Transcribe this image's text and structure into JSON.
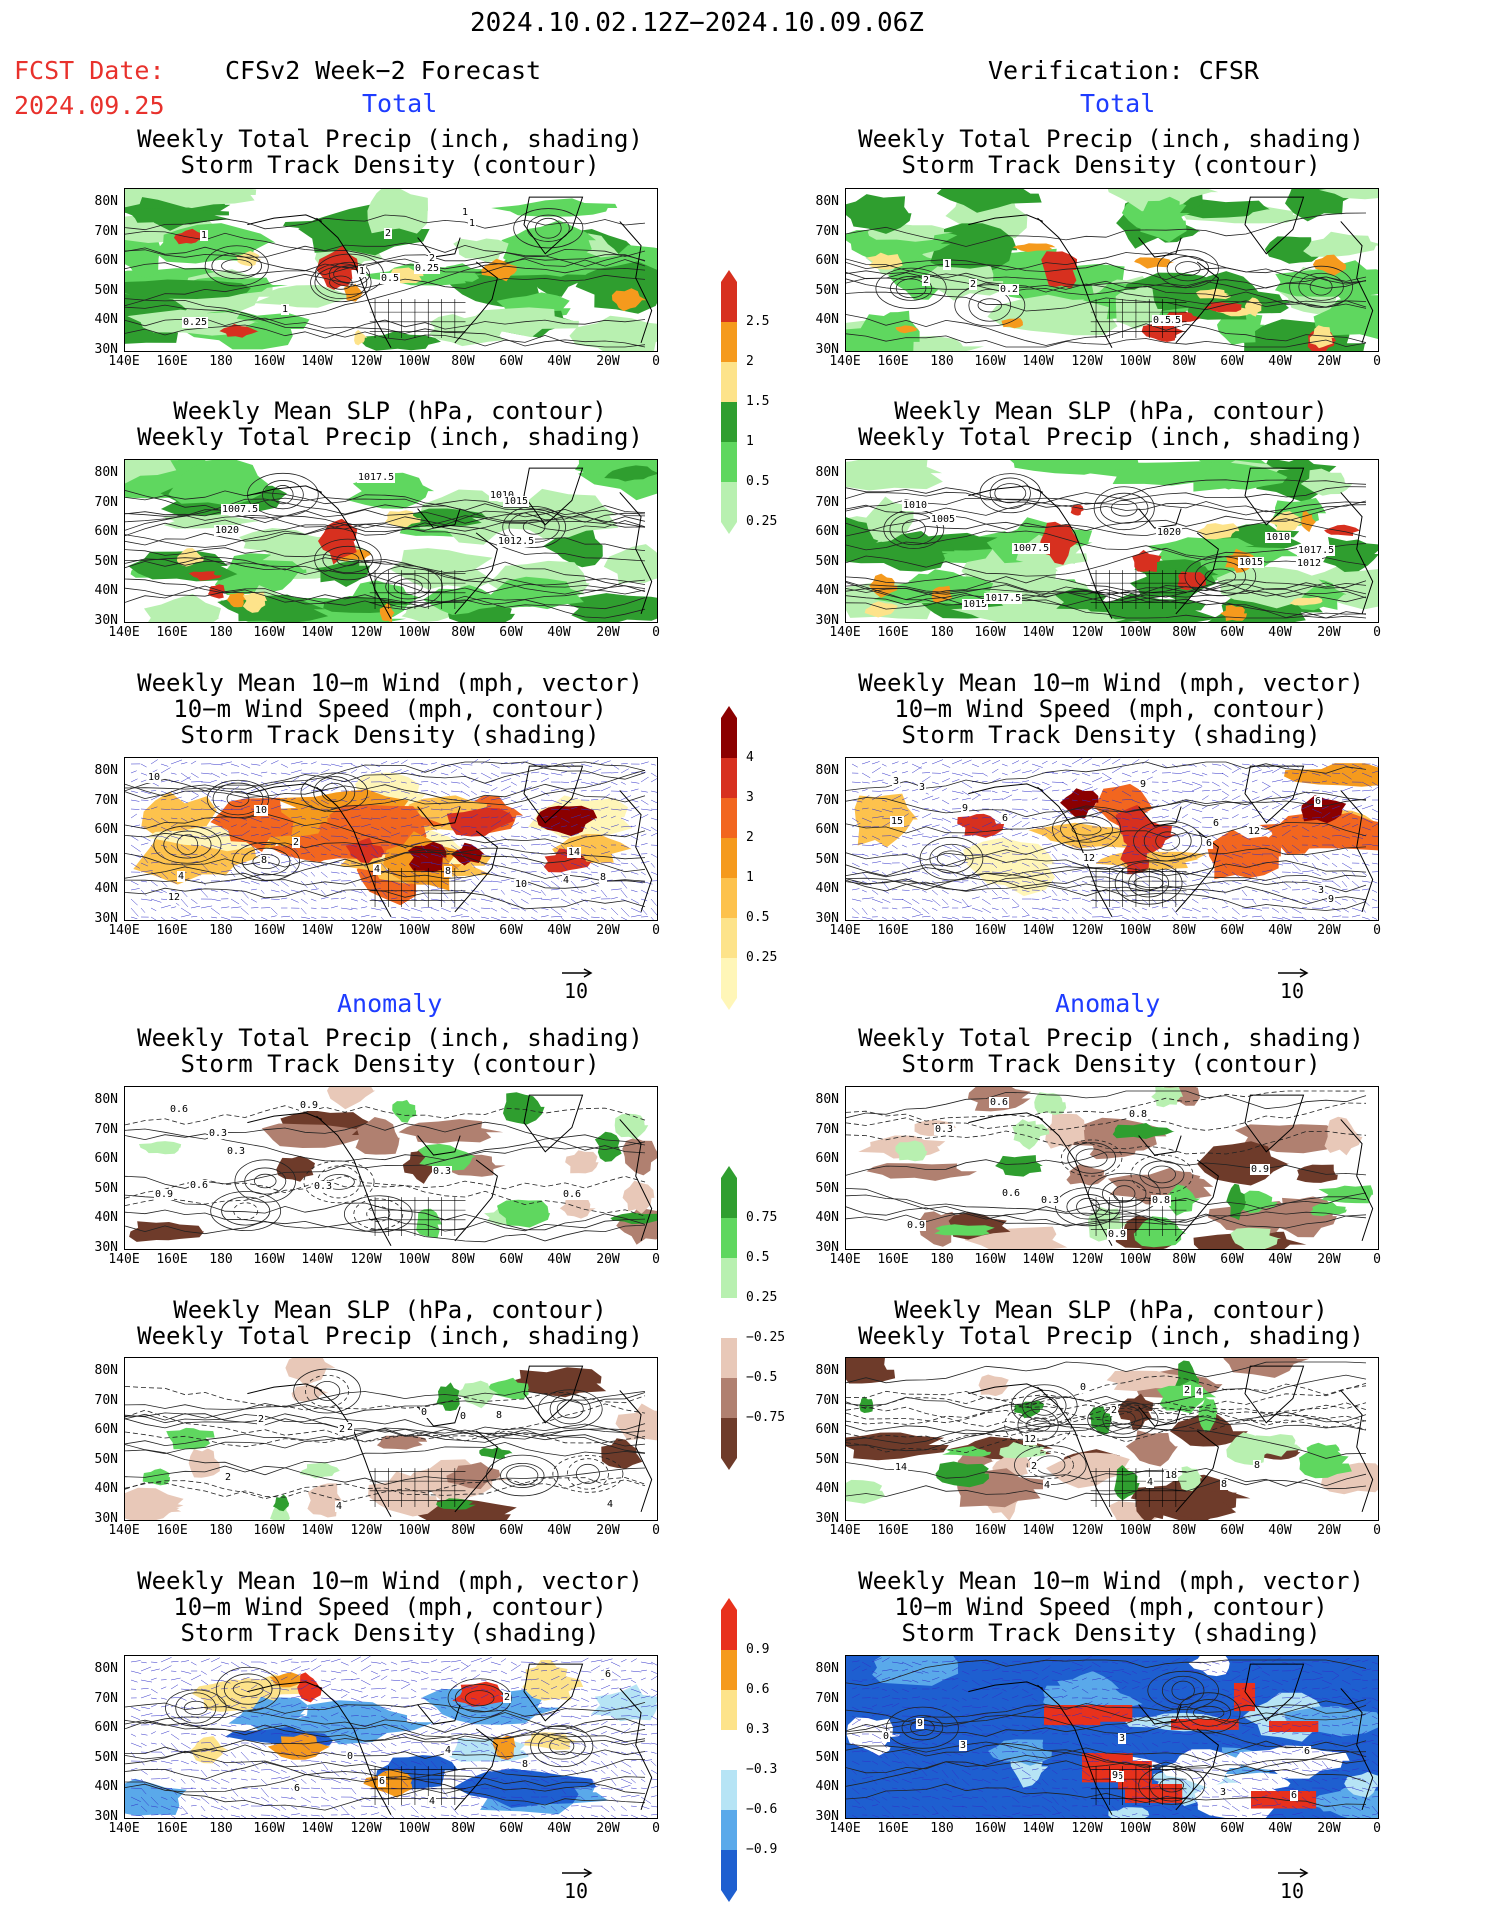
{
  "header": {
    "period": "2024.10.02.12Z−2024.10.09.06Z",
    "fcst_label": "FCST Date:",
    "fcst_date": "2024.09.25",
    "left_title": "CFSv2 Week−2 Forecast",
    "right_title": "Verification: CFSR"
  },
  "sections": {
    "total": "Total",
    "anomaly": "Anomaly"
  },
  "panel_titles": {
    "precip_storm": [
      "Weekly Total Precip (inch, shading)",
      "Storm Track Density (contour)"
    ],
    "slp_precip": [
      "Weekly Mean SLP (hPa, contour)",
      "Weekly Total Precip (inch, shading)"
    ],
    "wind_storm": [
      "Weekly Mean 10−m Wind (mph, vector)",
      "10−m Wind Speed (mph, contour)",
      "Storm Track Density (shading)"
    ]
  },
  "axes": {
    "lat_labels": [
      "80N",
      "70N",
      "60N",
      "50N",
      "40N",
      "30N"
    ],
    "lon_labels": [
      "140E",
      "160E",
      "180",
      "160W",
      "140W",
      "120W",
      "100W",
      "80W",
      "60W",
      "40W",
      "20W",
      "0"
    ]
  },
  "vector_reference": "10",
  "colorbars": {
    "total_precip": {
      "labels": [
        "2.5",
        "2",
        "1.5",
        "1",
        "0.5",
        "0.25"
      ],
      "colors": [
        "#d7301f",
        "#f59a1d",
        "#fde38a",
        "#2f9e2f",
        "#5fd75f",
        "#b8f0b0"
      ]
    },
    "total_storm": {
      "labels": [
        "4",
        "3",
        "2",
        "1",
        "0.5",
        "0.25"
      ],
      "colors": [
        "#8b0000",
        "#d7301f",
        "#f2661f",
        "#f59a1d",
        "#fdc24d",
        "#fde38a",
        "#fff6b8"
      ]
    },
    "anom_precip": {
      "labels": [
        "0.75",
        "0.5",
        "0.25",
        "−0.25",
        "−0.5",
        "−0.75"
      ],
      "colors": [
        "#2f9e2f",
        "#5fd75f",
        "#b8f0b0",
        "#ffffff",
        "#e8c8b8",
        "#b08070",
        "#6e3b2a"
      ]
    },
    "anom_storm": {
      "labels": [
        "0.9",
        "0.6",
        "0.3",
        "−0.3",
        "−0.6",
        "−0.9"
      ],
      "colors": [
        "#e8311c",
        "#f59a1d",
        "#fde38a",
        "#ffffff",
        "#b6e4f5",
        "#5aa9ea",
        "#1e5fd0"
      ]
    }
  },
  "contour_labels": {
    "p1l": [
      "0.5",
      "1",
      "1",
      "0.25",
      "2",
      "1",
      "1",
      "2",
      "1",
      "0.25"
    ],
    "p1r": [
      "10.5",
      "0.2",
      "0.5",
      "2",
      "1",
      "2"
    ],
    "p2l": [
      "1010",
      "1017.5",
      "1015",
      "1007.5",
      "1012.5",
      "1020"
    ],
    "p2r": [
      "1010",
      "1020",
      "1017.5",
      "1015",
      "1007.5",
      "1010",
      "1012",
      "1015",
      "1005",
      "1017.5"
    ],
    "p3l": [
      "8",
      "10",
      "12",
      "8",
      "14",
      "10",
      "2",
      "4",
      "8",
      "4",
      "4",
      "10"
    ],
    "p3r": [
      "3",
      "6",
      "9",
      "6",
      "12",
      "3",
      "6",
      "9",
      "3",
      "6",
      "12",
      "15",
      "9"
    ],
    "p4l": [
      "0.3",
      "0.6",
      "0.3",
      "0.9",
      "0.9",
      "0.6",
      "0.3",
      "0.6",
      "0.3"
    ],
    "p4r": [
      "0.6",
      "0.6",
      "0.9",
      "0.3",
      "0.8",
      "0.9",
      "0.8",
      "0.3",
      "0.9"
    ],
    "p5l": [
      "4",
      "2",
      "0",
      "2",
      "2",
      "8",
      "4",
      "2",
      "0"
    ],
    "p5r": [
      "2",
      "4",
      "8",
      "0",
      "8",
      "2",
      "4",
      "12",
      "14",
      "18",
      "4",
      "2"
    ],
    "p6l": [
      "4",
      "2",
      "6",
      "6",
      "6",
      "4",
      "8",
      "0"
    ],
    "p6r": [
      "3",
      "6",
      "9",
      "3",
      "6",
      "6",
      "3",
      "9",
      "0"
    ]
  }
}
